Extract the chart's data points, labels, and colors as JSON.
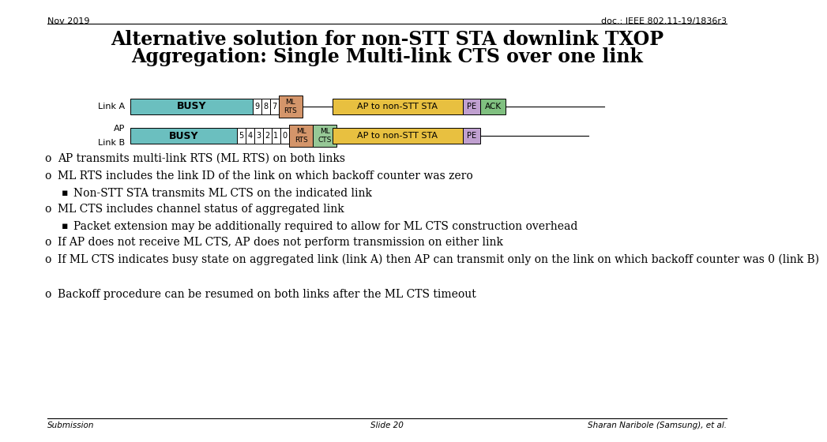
{
  "title_line1": "Alternative solution for non-STT STA downlink TXOP",
  "title_line2": "Aggregation: Single Multi-link CTS over one link",
  "header_left": "Nov 2019",
  "header_right": "doc.: IEEE 802.11-19/1836r3",
  "footer_left": "Submission",
  "footer_center": "Slide 20",
  "footer_right": "Sharan Naribole (Samsung), et al.",
  "bullet_points": [
    {
      "level": 1,
      "text": "AP transmits multi-link RTS (ML RTS) on both links"
    },
    {
      "level": 1,
      "text": "ML RTS includes the link ID of the link on which backoff counter was zero"
    },
    {
      "level": 2,
      "text": "Non-STT STA transmits ML CTS on the indicated link"
    },
    {
      "level": 1,
      "text": "ML CTS includes channel status of aggregated link"
    },
    {
      "level": 2,
      "text": "Packet extension may be additionally required to allow for ML CTS construction overhead"
    },
    {
      "level": 1,
      "text": "If AP does not receive ML CTS, AP does not perform transmission on either link"
    },
    {
      "level": 1,
      "text": "If ML CTS indicates busy state on aggregated link (link A) then AP can transmit only on the link on which backoff counter was 0 (link B)"
    },
    {
      "level": 1,
      "text": "Backoff procedure can be resumed on both links after the ML CTS timeout"
    }
  ],
  "diagram": {
    "link_a_label": "Link A",
    "link_b_label": "Link B",
    "ap_label": "AP",
    "busy_color": "#6BBFBF",
    "ml_rts_color": "#D4956A",
    "ml_cts_color": "#96C896",
    "ap_to_non_stt_color": "#E8C040",
    "pe_color": "#C0A0D0",
    "ack_color": "#80C080",
    "backoff_color": "#FFFFFF",
    "line_color": "#000000"
  }
}
